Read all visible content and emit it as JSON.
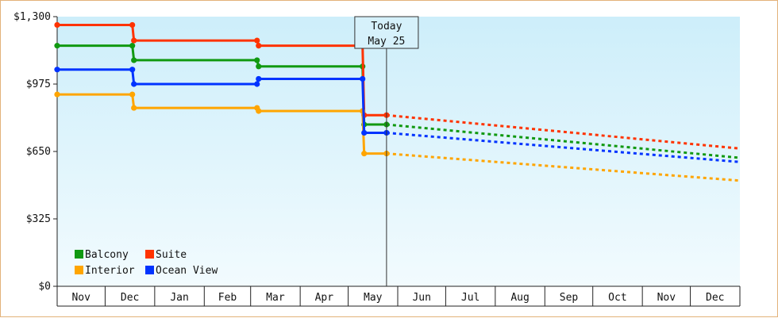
{
  "chart_data": {
    "type": "line",
    "step": true,
    "title": "",
    "xlabel": "",
    "ylabel": "",
    "ylim": [
      0,
      1300
    ],
    "yticks": [
      0,
      325,
      650,
      975,
      1300
    ],
    "ytick_labels": [
      "$0",
      "$325",
      "$650",
      "$975",
      "$1,300"
    ],
    "month_labels": [
      "Nov",
      "Dec",
      "Jan",
      "Feb",
      "Mar",
      "Apr",
      "May",
      "Jun",
      "Jul",
      "Aug",
      "Sep",
      "Oct",
      "Nov",
      "Dec"
    ],
    "x_start": "2023-11-01",
    "x_end": "2024-12-31",
    "today": {
      "date": "2024-05-25",
      "label_line1": "Today",
      "label_line2": "May 25"
    },
    "legend_position": "bottom-left",
    "background_gradient": [
      "#cdeefa",
      "#f2fbfe"
    ],
    "series": [
      {
        "name": "Balcony",
        "color": "#119911",
        "points": [
          [
            "2023-11-01",
            1160
          ],
          [
            "2023-12-18",
            1160
          ],
          [
            "2023-12-19",
            1090
          ],
          [
            "2024-03-05",
            1090
          ],
          [
            "2024-03-06",
            1060
          ],
          [
            "2024-05-10",
            1060
          ],
          [
            "2024-05-11",
            780
          ],
          [
            "2024-05-25",
            780
          ]
        ],
        "forecast": [
          [
            "2024-05-25",
            780
          ],
          [
            "2024-12-31",
            620
          ]
        ]
      },
      {
        "name": "Suite",
        "color": "#ff3300",
        "points": [
          [
            "2023-11-01",
            1260
          ],
          [
            "2023-12-18",
            1260
          ],
          [
            "2023-12-19",
            1185
          ],
          [
            "2024-03-05",
            1185
          ],
          [
            "2024-03-06",
            1160
          ],
          [
            "2024-05-10",
            1160
          ],
          [
            "2024-05-11",
            825
          ],
          [
            "2024-05-25",
            825
          ]
        ],
        "forecast": [
          [
            "2024-05-25",
            825
          ],
          [
            "2024-12-31",
            665
          ]
        ]
      },
      {
        "name": "Interior",
        "color": "#ffa500",
        "points": [
          [
            "2023-11-01",
            925
          ],
          [
            "2023-12-18",
            925
          ],
          [
            "2023-12-19",
            860
          ],
          [
            "2024-03-05",
            860
          ],
          [
            "2024-03-06",
            845
          ],
          [
            "2024-05-10",
            845
          ],
          [
            "2024-05-11",
            640
          ],
          [
            "2024-05-25",
            640
          ]
        ],
        "forecast": [
          [
            "2024-05-25",
            640
          ],
          [
            "2024-12-31",
            510
          ]
        ]
      },
      {
        "name": "Ocean View",
        "color": "#0033ff",
        "points": [
          [
            "2023-11-01",
            1045
          ],
          [
            "2023-12-18",
            1045
          ],
          [
            "2023-12-19",
            975
          ],
          [
            "2024-03-05",
            975
          ],
          [
            "2024-03-06",
            1000
          ],
          [
            "2024-05-10",
            1000
          ],
          [
            "2024-05-11",
            740
          ],
          [
            "2024-05-25",
            740
          ]
        ],
        "forecast": [
          [
            "2024-05-25",
            740
          ],
          [
            "2024-12-31",
            600
          ]
        ]
      }
    ]
  }
}
